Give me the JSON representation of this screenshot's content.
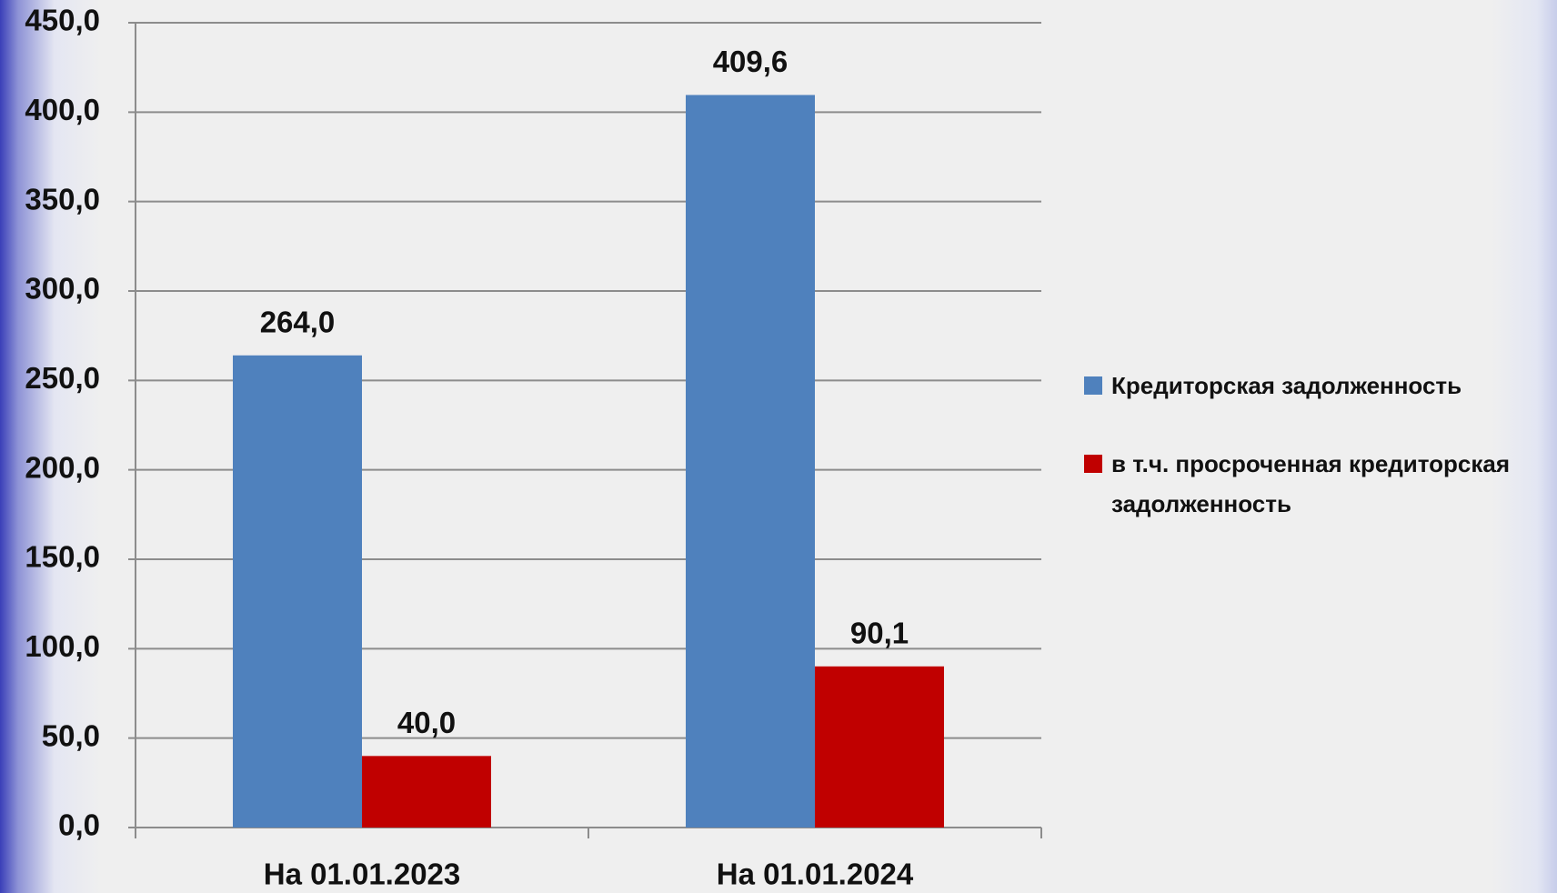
{
  "chart_data": {
    "type": "bar",
    "categories": [
      "На 01.01.2023",
      "На 01.01.2024"
    ],
    "series": [
      {
        "name": "Кредиторская задолженность",
        "color": "#4f81bd",
        "values": [
          264.0,
          409.6
        ],
        "value_labels": [
          "264,0",
          "409,6"
        ]
      },
      {
        "name": "в т.ч. просроченная кредиторская задолженность",
        "color": "#c00000",
        "values": [
          40.0,
          90.1
        ],
        "value_labels": [
          "40,0",
          "90,1"
        ]
      }
    ],
    "ylim": [
      0,
      450
    ],
    "yticks": [
      {
        "value": 0,
        "label": "0,0"
      },
      {
        "value": 50,
        "label": "50,0"
      },
      {
        "value": 100,
        "label": "100,0"
      },
      {
        "value": 150,
        "label": "150,0"
      },
      {
        "value": 200,
        "label": "200,0"
      },
      {
        "value": 250,
        "label": "250,0"
      },
      {
        "value": 300,
        "label": "300,0"
      },
      {
        "value": 350,
        "label": "350,0"
      },
      {
        "value": 400,
        "label": "400,0"
      },
      {
        "value": 450,
        "label": "450,0"
      }
    ],
    "grid": true,
    "legend": "right"
  }
}
